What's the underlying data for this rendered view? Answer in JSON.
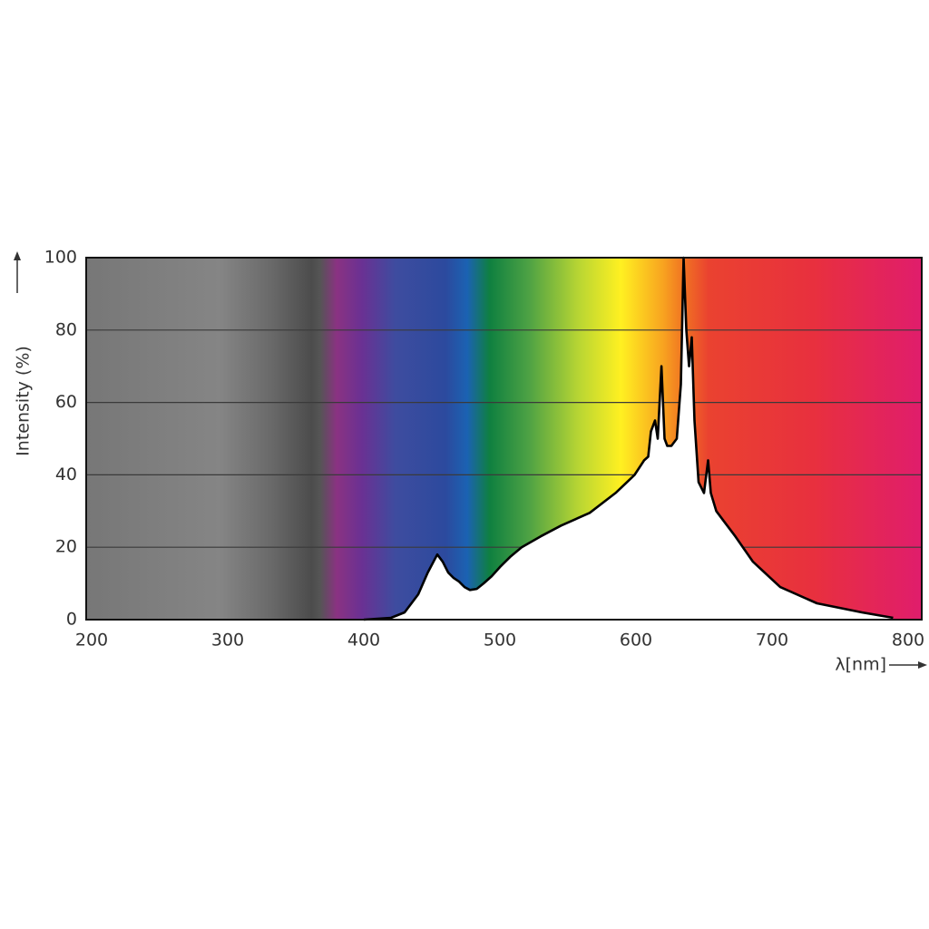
{
  "chart_data": {
    "type": "area",
    "y_label": "Intensity (%)",
    "x_label": "λ[nm]",
    "x": [
      400,
      420,
      430,
      440,
      447,
      454,
      458,
      462,
      466,
      470,
      474,
      478,
      483,
      488,
      494,
      500,
      508,
      516,
      530,
      545,
      566,
      585,
      599,
      606,
      609,
      611,
      614,
      616,
      618.7,
      621,
      623,
      626,
      630,
      633,
      635,
      637,
      639,
      641,
      643,
      646,
      650,
      653,
      655,
      659,
      665,
      673,
      686,
      706,
      733,
      766,
      789
    ],
    "series": [
      {
        "name": "Intensity",
        "color": "#000000",
        "values": [
          0,
          0.5,
          2,
          7,
          13,
          18,
          16,
          13,
          11.5,
          10.5,
          9,
          8.2,
          8.5,
          10,
          12,
          14.5,
          17.5,
          20,
          23,
          26,
          29.5,
          35,
          40,
          44,
          45,
          52,
          55,
          50,
          70,
          50,
          48,
          48,
          50,
          65,
          100,
          80,
          70,
          78,
          55,
          38,
          35,
          44,
          35,
          30,
          27,
          23,
          16,
          9,
          4.5,
          2,
          0.5
        ]
      }
    ],
    "xlim": [
      196,
      810
    ],
    "ylim": [
      0,
      100
    ],
    "xticks": [
      200,
      300,
      400,
      500,
      600,
      700,
      800
    ],
    "yticks": [
      0,
      20,
      40,
      60,
      80,
      100
    ],
    "grid": true
  }
}
